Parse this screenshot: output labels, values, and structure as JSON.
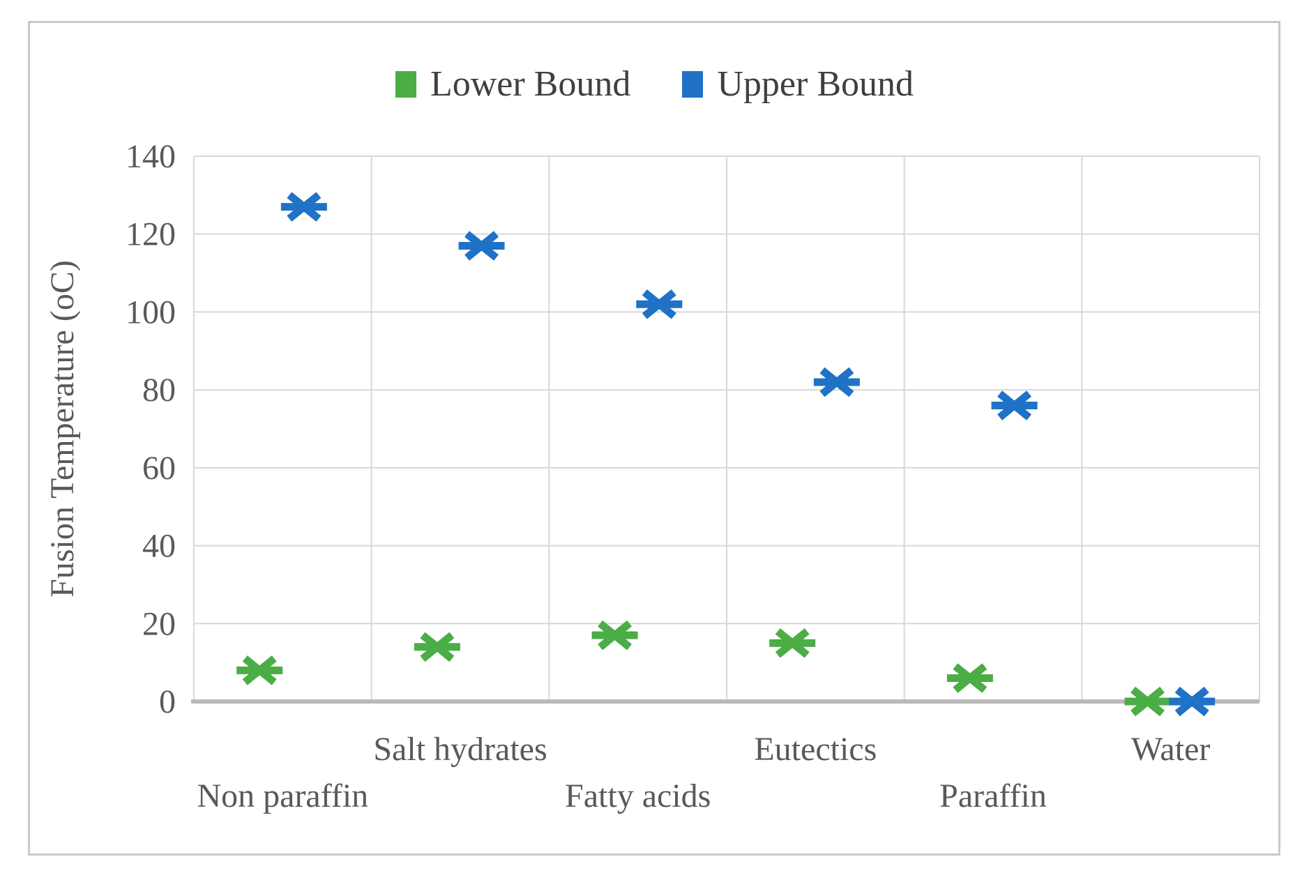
{
  "chart_data": {
    "type": "scatter",
    "title": "",
    "ylabel": "Fusion Temperature (oC)",
    "ylim": [
      0,
      140
    ],
    "yticks": [
      0,
      20,
      40,
      60,
      80,
      100,
      120,
      140
    ],
    "grid": true,
    "legend_position": "top-center",
    "categories": [
      "Non paraffin",
      "Salt hydrates",
      "Fatty acids",
      "Eutectics",
      "Paraffin",
      "Water"
    ],
    "series": [
      {
        "name": "Lower Bound",
        "color": "#4bad45",
        "values": [
          8,
          14,
          17,
          15,
          6,
          0
        ],
        "x_offset_frac": -0.13
      },
      {
        "name": "Upper Bound",
        "color": "#1f72c6",
        "values": [
          127,
          117,
          102,
          82,
          76,
          0
        ],
        "x_offset_frac": 0.12
      }
    ],
    "axis_text_color": "#595959",
    "gridline_color": "#d8d8d8",
    "axis_line_color": "#b9b9b9",
    "category_label_rows": [
      "lower",
      "upper",
      "lower",
      "upper",
      "lower",
      "upper"
    ]
  }
}
